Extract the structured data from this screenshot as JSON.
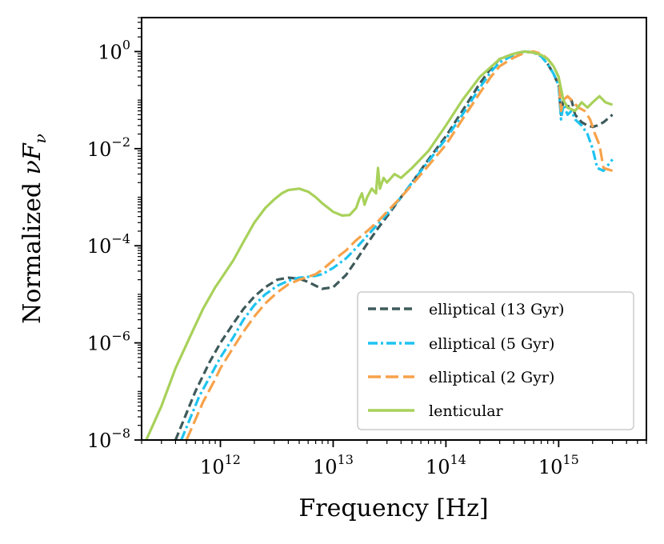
{
  "chart_data": {
    "type": "line",
    "title": "",
    "xlabel": "Frequency [Hz]",
    "ylabel_text": "Normalized ",
    "ylabel_symbol": "νF",
    "ylabel_subscript": "ν",
    "xscale": "log",
    "yscale": "log",
    "xlim": [
      200000000000.0,
      6000000000000000.0
    ],
    "ylim": [
      1e-08,
      5.0
    ],
    "grid": false,
    "legend_position": "lower-right",
    "x_ticks": [
      {
        "value": 1000000000000.0,
        "base": "10",
        "exp": "12"
      },
      {
        "value": 10000000000000.0,
        "base": "10",
        "exp": "13"
      },
      {
        "value": 100000000000000.0,
        "base": "10",
        "exp": "14"
      },
      {
        "value": 1000000000000000.0,
        "base": "10",
        "exp": "15"
      }
    ],
    "y_ticks": [
      {
        "value": 1.0,
        "base": "10",
        "exp": "0"
      },
      {
        "value": 0.01,
        "base": "10",
        "exp": "−2"
      },
      {
        "value": 0.0001,
        "base": "10",
        "exp": "−4"
      },
      {
        "value": 1e-06,
        "base": "10",
        "exp": "−6"
      },
      {
        "value": 1e-08,
        "base": "10",
        "exp": "−8"
      }
    ],
    "series": [
      {
        "name": "elliptical (13 Gyr)",
        "color": "#3f5a5a",
        "dash": "dash",
        "x": [
          400000000000.0,
          600000000000.0,
          800000000000.0,
          1000000000000.0,
          1300000000000.0,
          1600000000000.0,
          2000000000000.0,
          2500000000000.0,
          3200000000000.0,
          4000000000000.0,
          5000000000000.0,
          6000000000000.0,
          7000000000000.0,
          8000000000000.0,
          10000000000000.0,
          13000000000000.0,
          16000000000000.0,
          20000000000000.0,
          25000000000000.0,
          30000000000000.0,
          40000000000000.0,
          50000000000000.0,
          70000000000000.0,
          100000000000000.0,
          140000000000000.0,
          200000000000000.0,
          250000000000000.0,
          300000000000000.0,
          400000000000000.0,
          500000000000000.0,
          600000000000000.0,
          700000000000000.0,
          800000000000000.0,
          900000000000000.0,
          1000000000000000.0,
          1050000000000000.0,
          1100000000000000.0,
          1200000000000000.0,
          1300000000000000.0,
          1400000000000000.0,
          1600000000000000.0,
          1800000000000000.0,
          2000000000000000.0,
          2200000000000000.0,
          2500000000000000.0,
          3000000000000000.0
        ],
        "y": [
          1e-08,
          1e-07,
          4e-07,
          1e-06,
          2.5e-06,
          5e-06,
          9e-06,
          1.4e-05,
          2e-05,
          2.2e-05,
          2.1e-05,
          1.8e-05,
          1.5e-05,
          1.3e-05,
          1.4e-05,
          2.5e-05,
          5e-05,
          0.00011,
          0.00023,
          0.0004,
          0.001,
          0.002,
          0.006,
          0.018,
          0.06,
          0.22,
          0.45,
          0.7,
          0.9,
          1.0,
          0.95,
          0.8,
          0.55,
          0.35,
          0.2,
          0.05,
          0.1,
          0.07,
          0.1,
          0.05,
          0.035,
          0.03,
          0.028,
          0.03,
          0.035,
          0.05
        ]
      },
      {
        "name": "elliptical (5 Gyr)",
        "color": "#1ec3f0",
        "dash": "dashdot",
        "x": [
          450000000000.0,
          650000000000.0,
          850000000000.0,
          1000000000000.0,
          1300000000000.0,
          1600000000000.0,
          2000000000000.0,
          2500000000000.0,
          3200000000000.0,
          4000000000000.0,
          5000000000000.0,
          6000000000000.0,
          7000000000000.0,
          8000000000000.0,
          10000000000000.0,
          13000000000000.0,
          16000000000000.0,
          20000000000000.0,
          25000000000000.0,
          30000000000000.0,
          40000000000000.0,
          50000000000000.0,
          70000000000000.0,
          100000000000000.0,
          140000000000000.0,
          200000000000000.0,
          250000000000000.0,
          300000000000000.0,
          400000000000000.0,
          500000000000000.0,
          600000000000000.0,
          700000000000000.0,
          800000000000000.0,
          900000000000000.0,
          1000000000000000.0,
          1050000000000000.0,
          1100000000000000.0,
          1200000000000000.0,
          1300000000000000.0,
          1400000000000000.0,
          1600000000000000.0,
          1800000000000000.0,
          2000000000000000.0,
          2200000000000000.0,
          2500000000000000.0,
          3000000000000000.0
        ],
        "y": [
          1e-08,
          8e-08,
          2.5e-07,
          5e-07,
          1.3e-06,
          3e-06,
          6e-06,
          1e-05,
          1.5e-05,
          1.9e-05,
          2.2e-05,
          2.3e-05,
          2.4e-05,
          2.6e-05,
          3.5e-05,
          5.5e-05,
          9e-05,
          0.00016,
          0.00028,
          0.00045,
          0.001,
          0.002,
          0.0055,
          0.016,
          0.05,
          0.18,
          0.38,
          0.6,
          0.85,
          1.0,
          0.95,
          0.8,
          0.55,
          0.35,
          0.2,
          0.04,
          0.08,
          0.05,
          0.06,
          0.04,
          0.03,
          0.02,
          0.01,
          0.004,
          0.0035,
          0.006
        ]
      },
      {
        "name": "elliptical (2 Gyr)",
        "color": "#f7a24a",
        "dash": "longdash",
        "x": [
          500000000000.0,
          700000000000.0,
          900000000000.0,
          1000000000000.0,
          1300000000000.0,
          1600000000000.0,
          2000000000000.0,
          2500000000000.0,
          3200000000000.0,
          4000000000000.0,
          5000000000000.0,
          6000000000000.0,
          7000000000000.0,
          8000000000000.0,
          10000000000000.0,
          13000000000000.0,
          16000000000000.0,
          20000000000000.0,
          25000000000000.0,
          30000000000000.0,
          40000000000000.0,
          50000000000000.0,
          70000000000000.0,
          100000000000000.0,
          140000000000000.0,
          200000000000000.0,
          250000000000000.0,
          300000000000000.0,
          400000000000000.0,
          500000000000000.0,
          600000000000000.0,
          700000000000000.0,
          800000000000000.0,
          900000000000000.0,
          1000000000000000.0,
          1050000000000000.0,
          1100000000000000.0,
          1200000000000000.0,
          1300000000000000.0,
          1500000000000000.0,
          1700000000000000.0,
          1900000000000000.0,
          2100000000000000.0,
          2300000000000000.0,
          2500000000000000.0,
          3000000000000000.0
        ],
        "y": [
          1e-08,
          6e-08,
          1.8e-07,
          3e-07,
          8e-07,
          1.7e-06,
          3.5e-06,
          6.5e-06,
          1.1e-05,
          1.6e-05,
          2e-05,
          2.3e-05,
          2.6e-05,
          3.2e-05,
          5e-05,
          8e-05,
          0.00013,
          0.0002,
          0.00032,
          0.0005,
          0.001,
          0.0018,
          0.0045,
          0.012,
          0.04,
          0.14,
          0.3,
          0.5,
          0.75,
          0.95,
          1.0,
          0.9,
          0.7,
          0.5,
          0.3,
          0.06,
          0.1,
          0.12,
          0.1,
          0.07,
          0.06,
          0.04,
          0.02,
          0.012,
          0.004,
          0.0035
        ]
      },
      {
        "name": "lenticular",
        "color": "#a8d15a",
        "dash": "solid",
        "x": [
          220000000000.0,
          300000000000.0,
          400000000000.0,
          550000000000.0,
          700000000000.0,
          900000000000.0,
          1000000000000.0,
          1300000000000.0,
          1600000000000.0,
          2000000000000.0,
          2500000000000.0,
          3000000000000.0,
          3500000000000.0,
          4000000000000.0,
          5000000000000.0,
          6000000000000.0,
          7000000000000.0,
          8000000000000.0,
          10000000000000.0,
          12000000000000.0,
          14000000000000.0,
          16000000000000.0,
          17000000000000.0,
          18000000000000.0,
          19000000000000.0,
          20000000000000.0,
          22000000000000.0,
          24000000000000.0,
          25000000000000.0,
          26000000000000.0,
          28000000000000.0,
          30000000000000.0,
          35000000000000.0,
          40000000000000.0,
          50000000000000.0,
          70000000000000.0,
          100000000000000.0,
          140000000000000.0,
          200000000000000.0,
          300000000000000.0,
          400000000000000.0,
          500000000000000.0,
          600000000000000.0,
          700000000000000.0,
          800000000000000.0,
          900000000000000.0,
          1000000000000000.0,
          1100000000000000.0,
          1200000000000000.0,
          1400000000000000.0,
          1600000000000000.0,
          1800000000000000.0,
          2000000000000000.0,
          2300000000000000.0,
          2600000000000000.0,
          3000000000000000.0
        ],
        "y": [
          1e-08,
          5e-08,
          3e-07,
          1.5e-06,
          5e-06,
          1.4e-05,
          2e-05,
          5e-05,
          0.00012,
          0.0003,
          0.0006,
          0.0009,
          0.0012,
          0.0014,
          0.0015,
          0.0013,
          0.001,
          0.00075,
          0.0005,
          0.00042,
          0.00043,
          0.0006,
          0.0009,
          0.0012,
          0.0007,
          0.001,
          0.0015,
          0.0012,
          0.004,
          0.0015,
          0.0025,
          0.002,
          0.003,
          0.0025,
          0.004,
          0.009,
          0.03,
          0.1,
          0.3,
          0.7,
          0.9,
          1.0,
          0.95,
          0.85,
          0.7,
          0.5,
          0.3,
          0.1,
          0.07,
          0.06,
          0.09,
          0.07,
          0.09,
          0.12,
          0.09,
          0.08
        ]
      }
    ]
  }
}
